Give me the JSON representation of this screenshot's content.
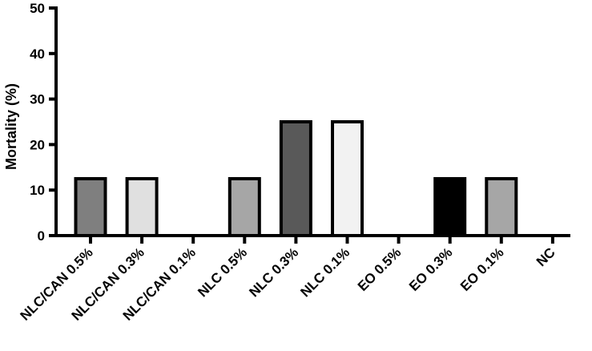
{
  "chart_data": {
    "type": "bar",
    "title": "",
    "xlabel": "",
    "ylabel": "Mortality (%)",
    "ylim": [
      0,
      50
    ],
    "yticks": [
      0,
      10,
      20,
      30,
      40,
      50
    ],
    "grid": false,
    "categories": [
      "NLC/CAN 0.5%",
      "NLC/CAN 0.3%",
      "NLC/CAN 0.1%",
      "NLC 0.5%",
      "NLC 0.3%",
      "NLC 0.1%",
      "EO 0.5%",
      "EO 0.3%",
      "EO 0.1%",
      "NC"
    ],
    "values": [
      12.5,
      12.5,
      0,
      12.5,
      25,
      25,
      0,
      12.5,
      12.5,
      0
    ],
    "colors": [
      "#7f7f7f",
      "#e0e0e0",
      "#ffffff",
      "#a6a6a6",
      "#595959",
      "#f2f2f2",
      "#ffffff",
      "#000000",
      "#a6a6a6",
      "#ffffff"
    ]
  }
}
